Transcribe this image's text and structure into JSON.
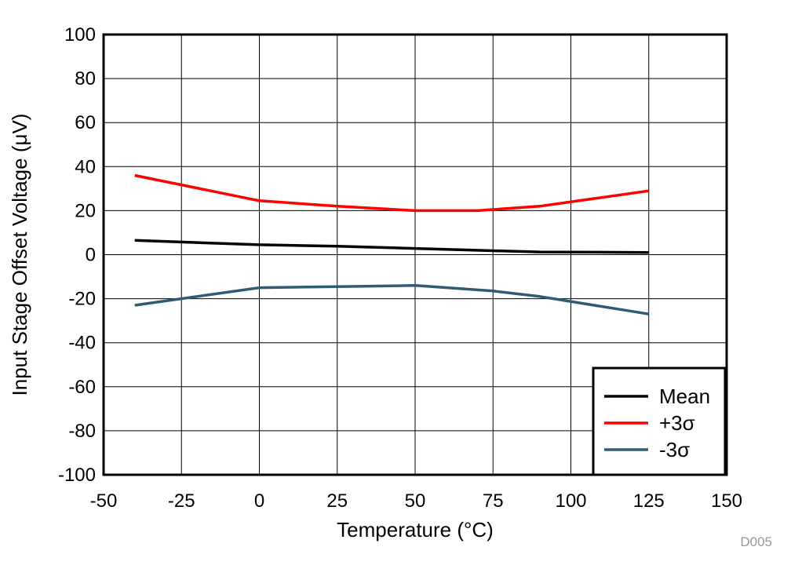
{
  "chart_data": {
    "type": "line",
    "title": "",
    "xlabel": "Temperature (°C)",
    "ylabel": "Input Stage Offset Voltage (μV)",
    "xlim": [
      -50,
      150
    ],
    "ylim": [
      -100,
      100
    ],
    "xticks": [
      -50,
      -25,
      0,
      25,
      50,
      75,
      100,
      125,
      150
    ],
    "yticks": [
      100,
      80,
      60,
      40,
      20,
      0,
      -20,
      -40,
      -60,
      -80,
      -100
    ],
    "grid": true,
    "legend_position": "bottom-right",
    "series": [
      {
        "name": "Mean",
        "color": "#000000",
        "x": [
          -40,
          0,
          25,
          50,
          75,
          90,
          125
        ],
        "y": [
          6.5,
          4.5,
          3.8,
          2.8,
          1.8,
          1.2,
          1.0
        ]
      },
      {
        "name": "+3σ",
        "color": "#ff0000",
        "x": [
          -40,
          0,
          25,
          50,
          70,
          90,
          125
        ],
        "y": [
          36,
          24.5,
          22,
          20,
          20,
          22,
          29
        ]
      },
      {
        "name": "-3σ",
        "color": "#2f5b73",
        "x": [
          -40,
          0,
          25,
          50,
          75,
          90,
          125
        ],
        "y": [
          -23,
          -15,
          -14.5,
          -14,
          -16.5,
          -19,
          -27
        ]
      }
    ],
    "figure_id": "D005"
  }
}
